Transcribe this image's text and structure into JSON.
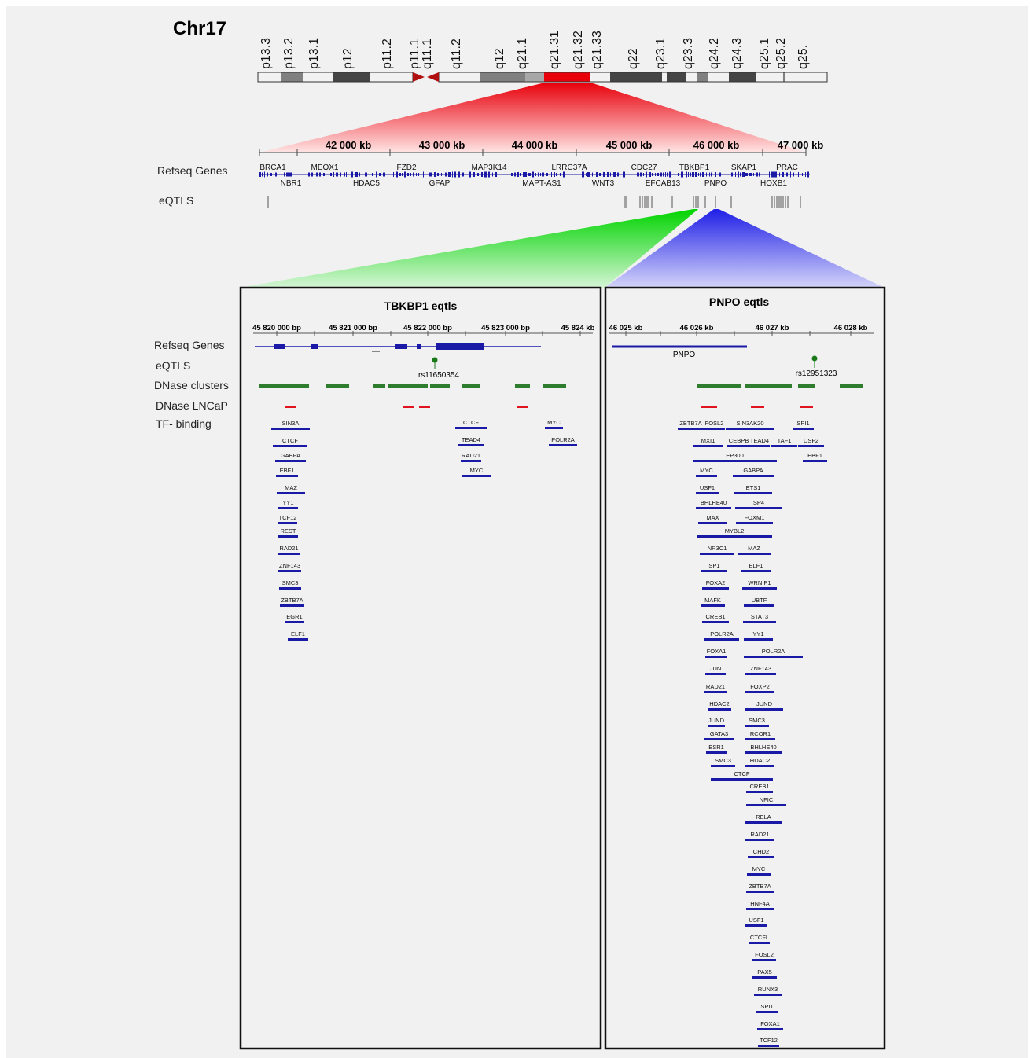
{
  "chrom": {
    "title": "Chr17",
    "bands": [
      "p13.3",
      "p13.2",
      "p13.1",
      "p12",
      "p11.2",
      "p11.1",
      "q11.1",
      "q11.2",
      "q12",
      "q21.1",
      "q21.31",
      "q21.32",
      "q21.33",
      "q22",
      "q23.1",
      "q23.3",
      "q24.2",
      "q24.3",
      "q25.1",
      "q25.2",
      "q25."
    ]
  },
  "overview": {
    "scale_labels": [
      "42 000 kb",
      "43 000 kb",
      "44 000 kb",
      "45 000 kb",
      "46 000 kb",
      "47 000 kb"
    ],
    "track_labels": {
      "genes": "Refseq Genes",
      "eqtls": "eQTLS"
    },
    "genes_top": [
      "BRCA1",
      "MEOX1",
      "FZD2",
      "MAP3K14",
      "LRRC37A",
      "CDC27",
      "TBKBP1",
      "SKAP1",
      "PRAC"
    ],
    "genes_bottom": [
      "NBR1",
      "HDAC5",
      "GFAP",
      "MAPT-AS1",
      "WNT3",
      "EFCAB13",
      "PNPO",
      "HOXB1"
    ]
  },
  "tracks": {
    "labels": [
      "Refseq Genes",
      "eQTLS",
      "DNase clusters",
      "DNase LNCaP",
      "TF- binding"
    ]
  },
  "panels": [
    {
      "title": "TBKBP1 eqtls",
      "scale_labels": [
        "45 820 000 bp",
        "45 821 000 bp",
        "45 822 000 bp",
        "45 823 000 bp",
        "45 824 kb"
      ],
      "snp": "rs11650354",
      "tf_left": [
        "SIN3A",
        "CTCF",
        "GABPA",
        "EBF1",
        "MAZ",
        "YY1",
        "TCF12",
        "REST",
        "RAD21",
        "ZNF143",
        "SMC3",
        "ZBTB7A",
        "EGR1",
        "ELF1"
      ],
      "tf_mid": [
        "CTCF",
        "TEAD4",
        "RAD21",
        "MYC"
      ],
      "tf_right": [
        "MYC",
        "POLR2A"
      ]
    },
    {
      "title": "PNPO eqtls",
      "scale_labels": [
        "46 025 kb",
        "46 026 kb",
        "46 027 kb",
        "46 028 kb"
      ],
      "gene": "PNPO",
      "snp": "rs12951323",
      "tf_left": [
        "ZBTB7A",
        "MXI1",
        "MYC",
        "USF1",
        "BHLHE40",
        "MAX",
        "NR3C1",
        "SP1",
        "FOXA2",
        "MAFK",
        "CREB1",
        "POLR2A",
        "FOXA1",
        "JUN",
        "RAD21",
        "HDAC2",
        "JUND",
        "GATA3",
        "ESR1",
        "SMC3"
      ],
      "tf_mid": [
        "FOSL2",
        "SIN3AK20",
        "CEBPB",
        "TEAD4",
        "EP300",
        "GABPA",
        "ETS1",
        "SP4",
        "FOXM1",
        "MYBL2",
        "MAZ",
        "ELF1",
        "WRNIP1",
        "UBTF",
        "STAT3",
        "YY1",
        "POLR2A",
        "ZNF143",
        "FOXP2",
        "JUND",
        "SMC3",
        "RCOR1",
        "BHLHE40",
        "HDAC2",
        "CTCF",
        "CREB1",
        "NFIC",
        "RELA",
        "RAD21",
        "CHD2",
        "MYC",
        "ZBTB7A",
        "HNF4A",
        "USF1",
        "CTCFL",
        "FOSL2",
        "PAX5",
        "RUNX3",
        "SPI1",
        "FOXA1",
        "TCF12"
      ],
      "tf_right": [
        "TAF1",
        "SPI1",
        "USF2",
        "EBF1"
      ]
    }
  ],
  "colors": {
    "background": "#f1f1f1",
    "zoom1": "#e8000b",
    "zoom_green": "#00d400",
    "zoom_blue": "#1f1fe6",
    "gene": "#1a1aa6",
    "dnase": "#2e7d2e",
    "lncap": "#e0141e",
    "tf": "#1a1aa6",
    "snp": "#1a7a1a"
  }
}
